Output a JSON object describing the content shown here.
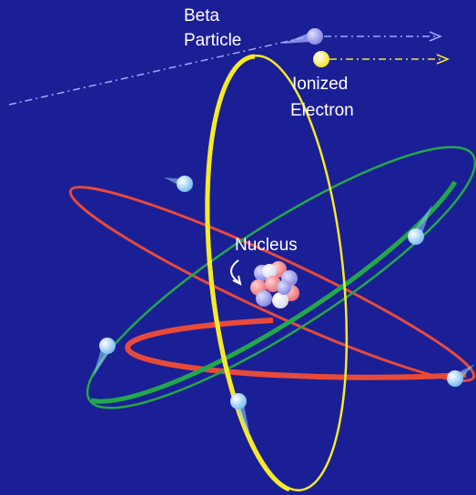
{
  "labels": {
    "beta_particle": [
      "Beta",
      "Particle"
    ],
    "ionized_electron": [
      "Ionized",
      "Electron"
    ],
    "nucleus": "Nucleus"
  }
}
